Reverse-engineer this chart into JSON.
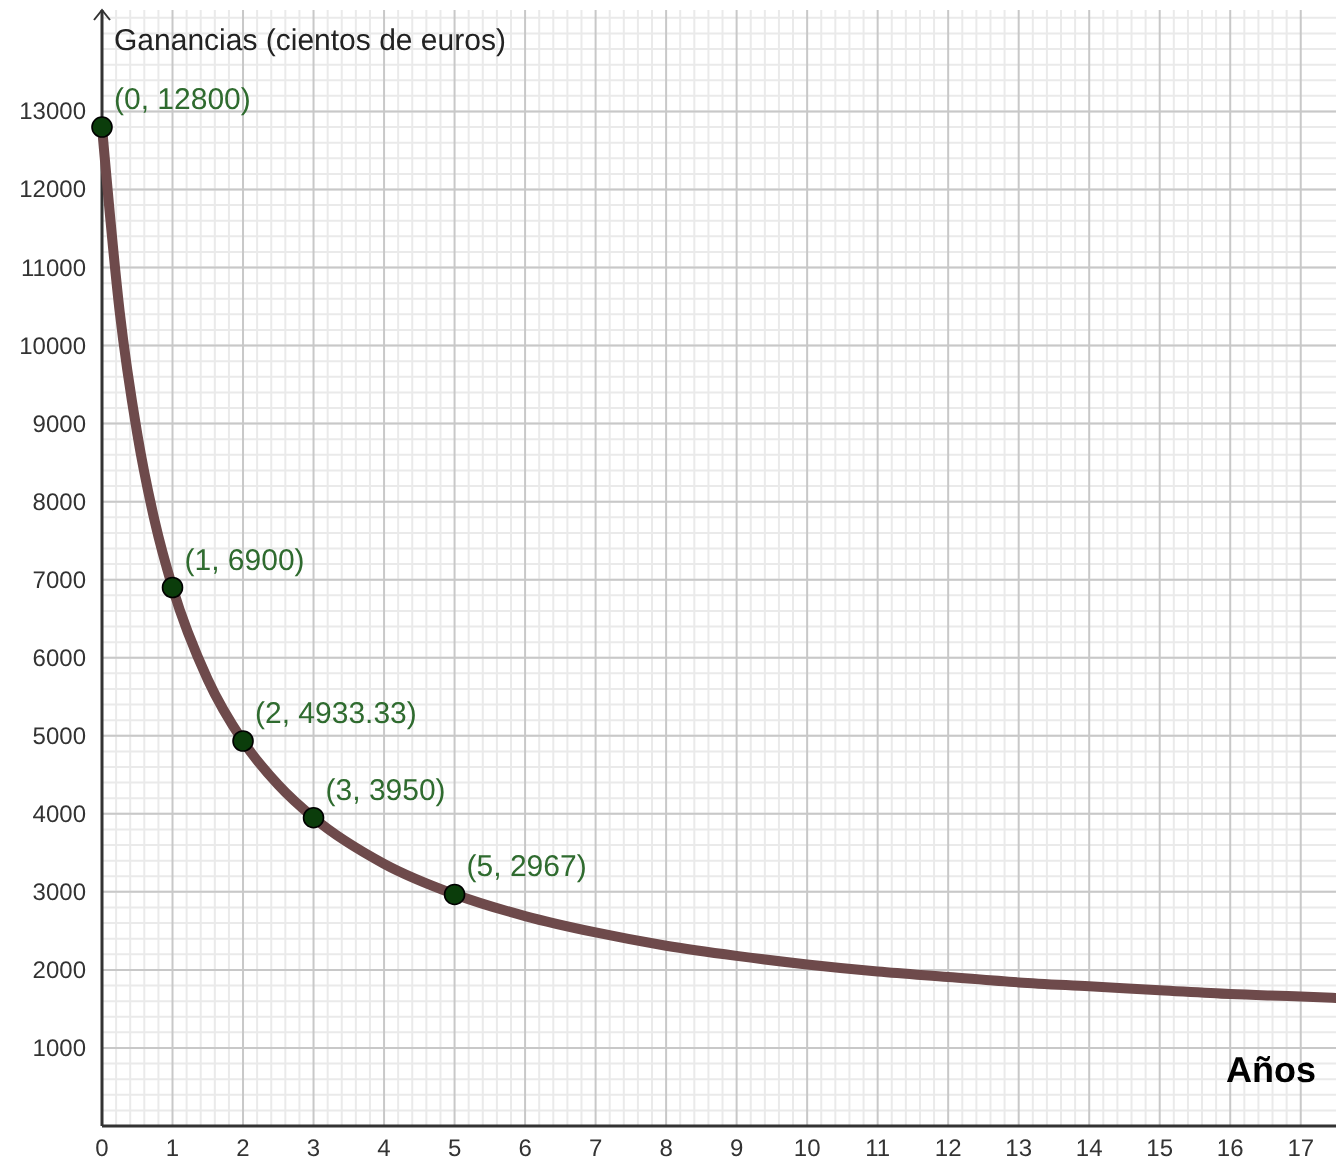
{
  "chart_data": {
    "type": "line",
    "xlabel": "Años",
    "ylabel": "Ganancias (cientos de euros)",
    "xlim": [
      0,
      17.5
    ],
    "ylim": [
      0,
      14300
    ],
    "xticks": [
      0,
      1,
      2,
      3,
      4,
      5,
      6,
      7,
      8,
      9,
      10,
      11,
      12,
      13,
      14,
      15,
      16,
      17
    ],
    "yticks": [
      1000,
      2000,
      3000,
      4000,
      5000,
      6000,
      7000,
      8000,
      9000,
      10000,
      11000,
      12000,
      13000
    ],
    "grid": true,
    "series": [
      {
        "color": "#6e4a4b",
        "marker": "none",
        "x": [
          0,
          0.25,
          0.5,
          0.75,
          1,
          1.5,
          2,
          2.5,
          3,
          4,
          5,
          6,
          7,
          8,
          9,
          10,
          11,
          12,
          13,
          14,
          15,
          16,
          17,
          17.5
        ],
        "values": [
          12800,
          10440,
          8870,
          7740,
          6900,
          5720,
          4930,
          4370,
          3950,
          3360,
          2970,
          2690,
          2480,
          2310,
          2180,
          2070,
          1980,
          1910,
          1840,
          1790,
          1740,
          1690,
          1660,
          1640
        ]
      },
      {
        "type": "scatter",
        "color": "#0b3d0b",
        "marker": "circle",
        "x": [
          0,
          1,
          2,
          3,
          5
        ],
        "values": [
          12800,
          6900,
          4933.33,
          3950,
          2967
        ],
        "value_labels": [
          "(0, 12800)",
          "(1, 6900)",
          "(2, 4933.33)",
          "(3, 3950)",
          "(5, 2967)"
        ]
      }
    ]
  }
}
